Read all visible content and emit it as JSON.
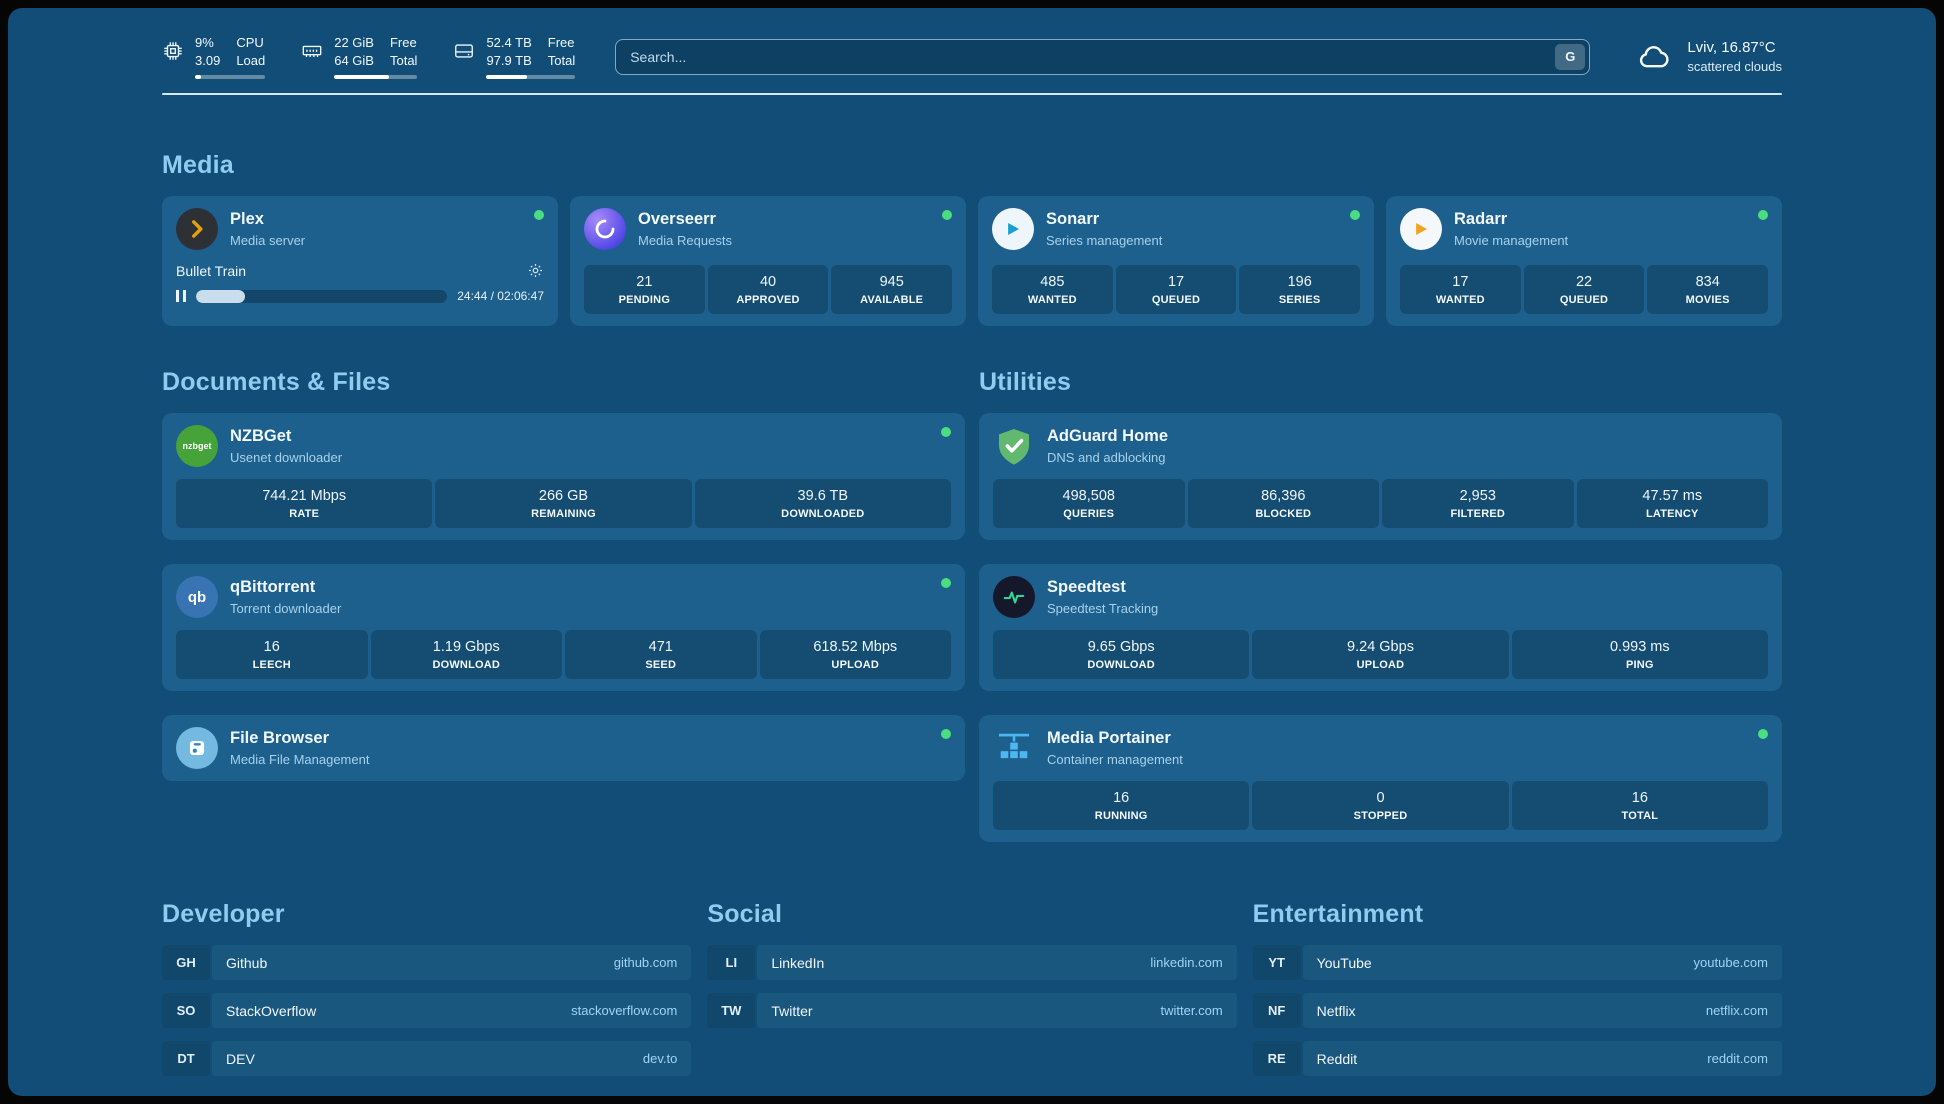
{
  "colors": {
    "background": "#114d76",
    "card": "#1d5f8d",
    "section_title": "#8ecdf0",
    "status_online": "#4ade80",
    "bookmark_url": "#9fd4f5",
    "plex_brand": "#e5a00d"
  },
  "header": {
    "hardware": [
      {
        "icon": "cpu-icon",
        "line1": "9%",
        "line2": "3.09",
        "label1": "CPU",
        "label2": "Load",
        "usage_pct": 9
      },
      {
        "icon": "ram-icon",
        "line1": "22 GiB",
        "line2": "64 GiB",
        "label1": "Free",
        "label2": "Total",
        "usage_pct": 66
      },
      {
        "icon": "disk-icon",
        "line1": "52.4 TB",
        "line2": "97.9 TB",
        "label1": "Free",
        "label2": "Total",
        "usage_pct": 46
      }
    ],
    "search": {
      "placeholder": "Search...",
      "engine_button": "G"
    },
    "weather": {
      "location": "Lviv, 16.87°C",
      "condition": "scattered clouds"
    }
  },
  "sections": {
    "media": {
      "title": "Media",
      "apps": [
        {
          "name": "Plex",
          "subtitle": "Media server",
          "online": true,
          "now_playing": {
            "title": "Bullet Train",
            "time": "24:44 / 02:06:47",
            "progress_pct": 19.5
          }
        },
        {
          "name": "Overseerr",
          "subtitle": "Media Requests",
          "online": true,
          "stats": [
            {
              "value": "21",
              "label": "PENDING"
            },
            {
              "value": "40",
              "label": "APPROVED"
            },
            {
              "value": "945",
              "label": "AVAILABLE"
            }
          ]
        },
        {
          "name": "Sonarr",
          "subtitle": "Series management",
          "online": true,
          "stats": [
            {
              "value": "485",
              "label": "WANTED"
            },
            {
              "value": "17",
              "label": "QUEUED"
            },
            {
              "value": "196",
              "label": "SERIES"
            }
          ]
        },
        {
          "name": "Radarr",
          "subtitle": "Movie management",
          "online": true,
          "stats": [
            {
              "value": "17",
              "label": "WANTED"
            },
            {
              "value": "22",
              "label": "QUEUED"
            },
            {
              "value": "834",
              "label": "MOVIES"
            }
          ]
        }
      ]
    },
    "documents": {
      "title": "Documents & Files",
      "apps": [
        {
          "name": "NZBGet",
          "subtitle": "Usenet downloader",
          "online": true,
          "icon_label": "nzbget",
          "stats": [
            {
              "value": "744.21 Mbps",
              "label": "RATE"
            },
            {
              "value": "266 GB",
              "label": "REMAINING"
            },
            {
              "value": "39.6 TB",
              "label": "DOWNLOADED"
            }
          ]
        },
        {
          "name": "qBittorrent",
          "subtitle": "Torrent downloader",
          "online": true,
          "icon_label": "qb",
          "stats": [
            {
              "value": "16",
              "label": "LEECH"
            },
            {
              "value": "1.19 Gbps",
              "label": "DOWNLOAD"
            },
            {
              "value": "471",
              "label": "SEED"
            },
            {
              "value": "618.52 Mbps",
              "label": "UPLOAD"
            }
          ]
        },
        {
          "name": "File Browser",
          "subtitle": "Media File Management",
          "online": true
        }
      ]
    },
    "utilities": {
      "title": "Utilities",
      "apps": [
        {
          "name": "AdGuard Home",
          "subtitle": "DNS and adblocking",
          "stats": [
            {
              "value": "498,508",
              "label": "QUERIES"
            },
            {
              "value": "86,396",
              "label": "BLOCKED"
            },
            {
              "value": "2,953",
              "label": "FILTERED"
            },
            {
              "value": "47.57 ms",
              "label": "LATENCY"
            }
          ]
        },
        {
          "name": "Speedtest",
          "subtitle": "Speedtest Tracking",
          "stats": [
            {
              "value": "9.65 Gbps",
              "label": "DOWNLOAD"
            },
            {
              "value": "9.24 Gbps",
              "label": "UPLOAD"
            },
            {
              "value": "0.993 ms",
              "label": "PING"
            }
          ]
        },
        {
          "name": "Media Portainer",
          "subtitle": "Container management",
          "online": true,
          "stats": [
            {
              "value": "16",
              "label": "RUNNING"
            },
            {
              "value": "0",
              "label": "STOPPED"
            },
            {
              "value": "16",
              "label": "TOTAL"
            }
          ]
        }
      ]
    },
    "bookmarks": [
      {
        "title": "Developer",
        "links": [
          {
            "abbr": "GH",
            "name": "Github",
            "url": "github.com"
          },
          {
            "abbr": "SO",
            "name": "StackOverflow",
            "url": "stackoverflow.com"
          },
          {
            "abbr": "DT",
            "name": "DEV",
            "url": "dev.to"
          }
        ]
      },
      {
        "title": "Social",
        "links": [
          {
            "abbr": "LI",
            "name": "LinkedIn",
            "url": "linkedin.com"
          },
          {
            "abbr": "TW",
            "name": "Twitter",
            "url": "twitter.com"
          }
        ]
      },
      {
        "title": "Entertainment",
        "links": [
          {
            "abbr": "YT",
            "name": "YouTube",
            "url": "youtube.com"
          },
          {
            "abbr": "NF",
            "name": "Netflix",
            "url": "netflix.com"
          },
          {
            "abbr": "RE",
            "name": "Reddit",
            "url": "reddit.com"
          }
        ]
      }
    ]
  }
}
